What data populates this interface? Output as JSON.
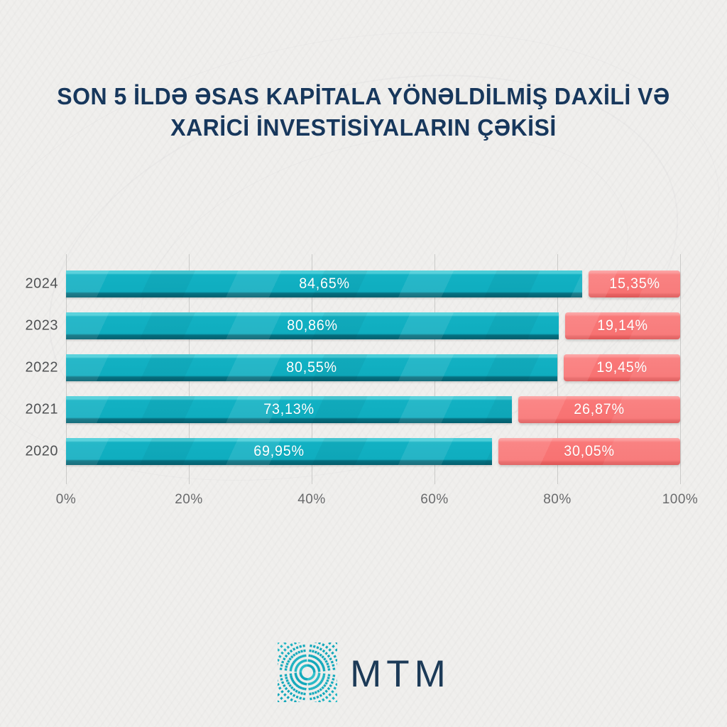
{
  "title": {
    "line1": "SON 5 İLDƏ ƏSAS KAPİTALA YÖNƏLDİLMİŞ DAXİLİ VƏ",
    "line2": "XARİCİ İNVESTİSİYALARIN ÇƏKİSİ"
  },
  "chart_data": {
    "type": "bar",
    "orientation": "horizontal",
    "stacked": true,
    "categories": [
      "2024",
      "2023",
      "2022",
      "2021",
      "2020"
    ],
    "series": [
      {
        "name": "domestic-investment-share",
        "color": "#12b1c3",
        "values": [
          84.65,
          80.86,
          80.55,
          73.13,
          69.95
        ]
      },
      {
        "name": "foreign-investment-share",
        "color": "#f87272",
        "values": [
          15.35,
          19.14,
          19.45,
          26.87,
          30.05
        ]
      }
    ],
    "value_labels": {
      "domestic": [
        "84,65%",
        "80,86%",
        "80,55%",
        "73,13%",
        "69,95%"
      ],
      "foreign": [
        "15,35%",
        "19,14%",
        "19,45%",
        "26,87%",
        "30,05%"
      ]
    },
    "x_ticks": [
      "0%",
      "20%",
      "40%",
      "60%",
      "80%",
      "100%"
    ],
    "xlim": [
      0,
      100
    ],
    "grid": true,
    "legend": "none"
  },
  "logo": {
    "text": "MTM",
    "icon": "burst-dashes-icon",
    "icon_color": "#14aabb",
    "text_color": "#1c3a57"
  },
  "colors": {
    "background": "#f0efed",
    "title_text": "#17375c",
    "domestic_bar": "#12b1c3",
    "domestic_bar_highlight": "#4bcdd8",
    "domestic_bar_shadow": "#03606f",
    "foreign_bar": "#f87272",
    "foreign_bar_highlight": "#fb9494",
    "foreign_bar_shadow": "#dd5757",
    "gridline": "#cbcbc9",
    "year_label": "#505254",
    "axis_label": "#696a6c",
    "value_label": "#ffffff"
  }
}
